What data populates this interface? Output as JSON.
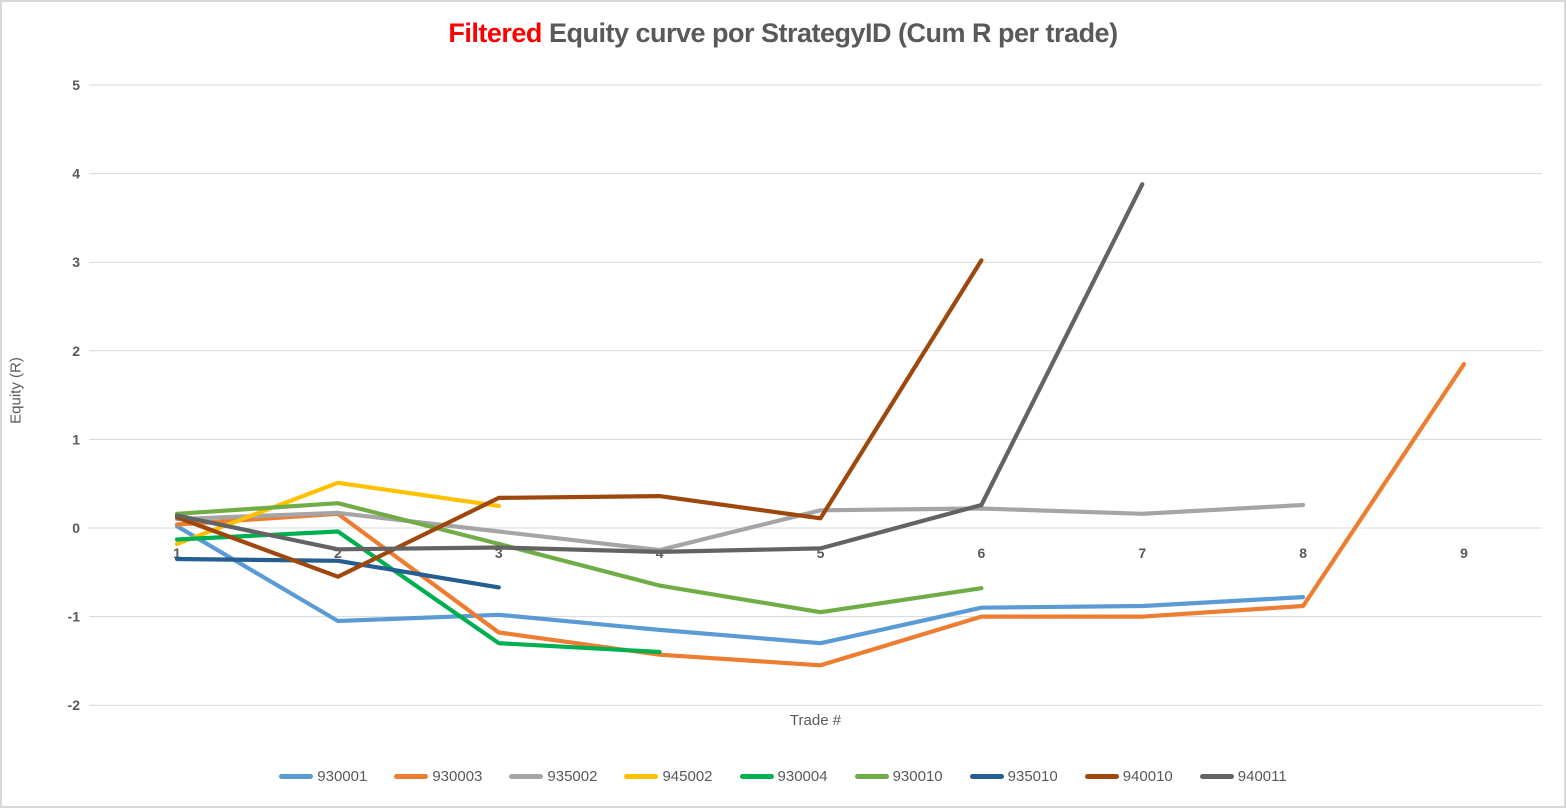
{
  "title": {
    "highlight": "Filtered",
    "rest": "Equity curve por StrategyID (Cum R per trade)"
  },
  "y_axis": {
    "label": "Equity (R)",
    "ticks": [
      5,
      4,
      3,
      2,
      1,
      0,
      -1,
      -2
    ]
  },
  "x_axis": {
    "label": "Trade #",
    "ticks": [
      1,
      2,
      3,
      4,
      5,
      6,
      7,
      8,
      9
    ]
  },
  "colors": {
    "title_highlight": "#FF0000",
    "title_text": "#595959",
    "axis_text": "#595959",
    "gridline": "#D9D9D9",
    "background": "#FFFFFF",
    "border": "#D9D9D9"
  },
  "chart_data": {
    "type": "line",
    "title": "Filtered Equity curve por StrategyID (Cum R per trade)",
    "xlabel": "Trade #",
    "ylabel": "Equity (R)",
    "x": [
      1,
      2,
      3,
      4,
      5,
      6,
      7,
      8,
      9
    ],
    "ylim": [
      -2,
      5
    ],
    "grid": "horizontal",
    "legend_position": "bottom",
    "series": [
      {
        "name": "930001",
        "color": "#5B9BD5",
        "values": [
          0.02,
          -1.05,
          -0.98,
          -1.15,
          -1.3,
          -0.9,
          -0.88,
          -0.78,
          null
        ]
      },
      {
        "name": "930003",
        "color": "#ED7D31",
        "values": [
          0.04,
          0.16,
          -1.18,
          -1.43,
          -1.55,
          -1.0,
          -1.0,
          -0.88,
          1.85
        ]
      },
      {
        "name": "935002",
        "color": "#A5A5A5",
        "values": [
          0.1,
          0.17,
          -0.04,
          -0.25,
          0.2,
          0.22,
          0.16,
          0.26,
          null
        ]
      },
      {
        "name": "945002",
        "color": "#FFC000",
        "values": [
          -0.18,
          0.51,
          0.25,
          null,
          null,
          null,
          null,
          null,
          null
        ]
      },
      {
        "name": "930004",
        "color": "#00B050",
        "values": [
          -0.13,
          -0.04,
          -1.3,
          -1.4,
          null,
          null,
          null,
          null,
          null
        ]
      },
      {
        "name": "930010",
        "color": "#70AD47",
        "values": [
          0.16,
          0.28,
          -0.18,
          -0.65,
          -0.95,
          -0.68,
          null,
          null,
          null
        ]
      },
      {
        "name": "935010",
        "color": "#255E91",
        "values": [
          -0.35,
          -0.37,
          -0.67,
          null,
          null,
          null,
          null,
          null,
          null
        ]
      },
      {
        "name": "940010",
        "color": "#9E480E",
        "values": [
          0.12,
          -0.55,
          0.34,
          0.36,
          0.11,
          3.02,
          null,
          null,
          null
        ]
      },
      {
        "name": "940011",
        "color": "#636363",
        "values": [
          0.14,
          -0.24,
          -0.22,
          -0.27,
          -0.23,
          0.26,
          3.88,
          null,
          null
        ]
      }
    ]
  }
}
